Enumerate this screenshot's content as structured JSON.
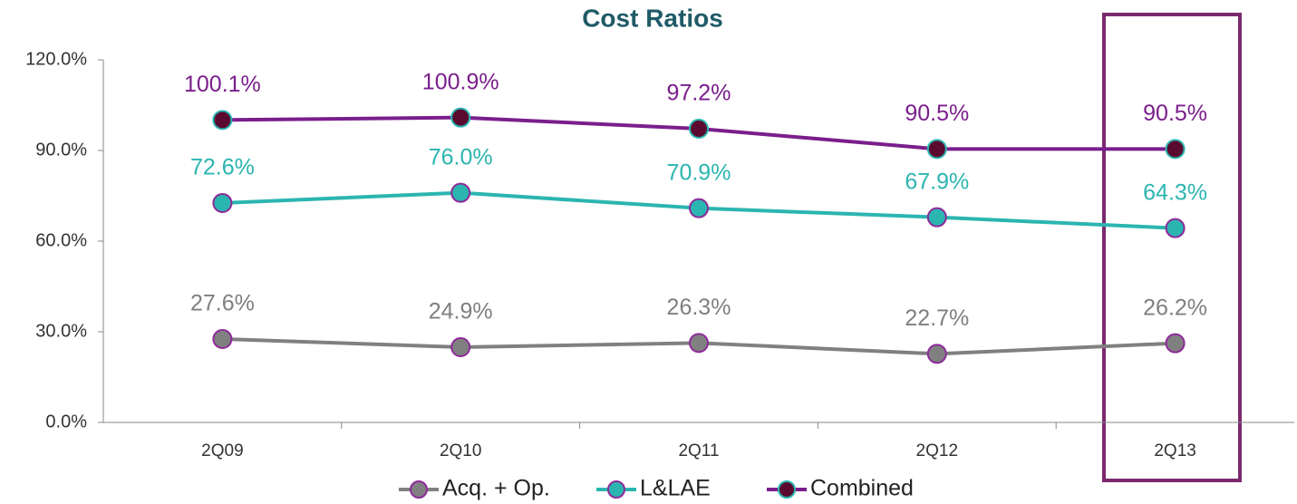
{
  "chart_data": {
    "type": "line",
    "title": "Cost Ratios",
    "categories": [
      "2Q09",
      "2Q10",
      "2Q11",
      "2Q12",
      "2Q13"
    ],
    "series": [
      {
        "name": "Acq. + Op.",
        "color": "#808080",
        "marker_color": "#808080",
        "marker_edge": "#8e2a9a",
        "label_color": "#7f7f7f",
        "values": [
          27.6,
          24.9,
          26.3,
          22.7,
          26.2
        ],
        "value_labels": [
          "27.6%",
          "24.9%",
          "26.3%",
          "22.7%",
          "26.2%"
        ]
      },
      {
        "name": "L&LAE",
        "color": "#2bb5b0",
        "marker_color": "#2bb5b0",
        "marker_edge": "#8e2a9a",
        "label_color": "#2bb5b0",
        "values": [
          72.6,
          76.0,
          70.9,
          67.9,
          64.3
        ],
        "value_labels": [
          "72.6%",
          "76.0%",
          "70.9%",
          "67.9%",
          "64.3%"
        ]
      },
      {
        "name": "Combined",
        "color": "#7a1e8c",
        "marker_color": "#5a0a2e",
        "marker_edge": "#2bb5b0",
        "label_color": "#7a1e8c",
        "values": [
          100.1,
          100.9,
          97.2,
          90.5,
          90.5
        ],
        "value_labels": [
          "100.1%",
          "100.9%",
          "97.2%",
          "90.5%",
          "90.5%"
        ]
      }
    ],
    "ylim": [
      0,
      120
    ],
    "yticks": [
      {
        "value": 0,
        "label": "0.0%"
      },
      {
        "value": 30,
        "label": "30.0%"
      },
      {
        "value": 60,
        "label": "60.0%"
      },
      {
        "value": 90,
        "label": "90.0%"
      },
      {
        "value": 120,
        "label": "120.0%"
      }
    ],
    "grid": false,
    "legend": "bottom"
  }
}
